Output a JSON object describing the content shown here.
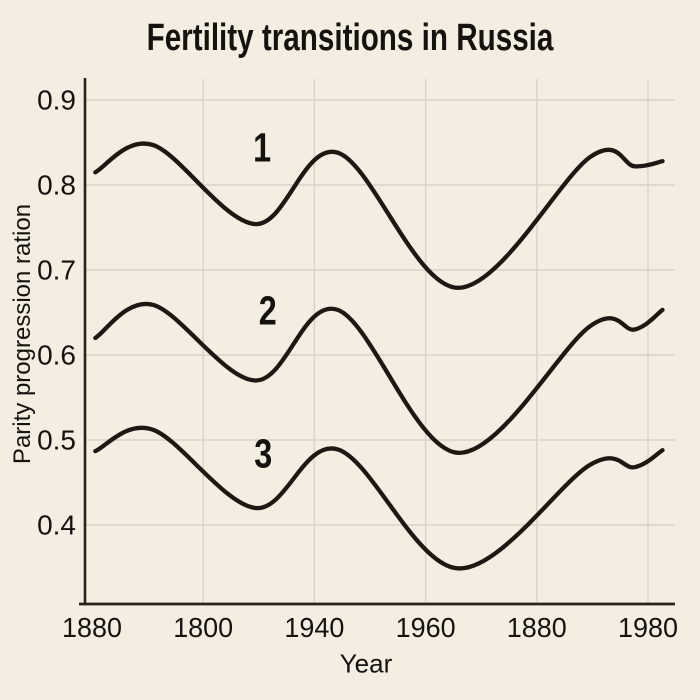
{
  "page": {
    "background_color": "#f4eee2"
  },
  "chart_data": {
    "type": "line",
    "title": "Fertility transitions in Russia",
    "xlabel": "Year",
    "ylabel": "Parity progression ration",
    "x_tick_labels": [
      "1880",
      "1800",
      "1940",
      "1960",
      "1880",
      "1980"
    ],
    "y_tick_labels": [
      "0.9",
      "0.8",
      "0.7",
      "0.6",
      "0.5",
      "0.4"
    ],
    "y_ticks": [
      0.9,
      0.8,
      0.7,
      0.6,
      0.5,
      0.4
    ],
    "ylim": [
      0.31,
      0.92
    ],
    "grid": true,
    "legend_position": "inline-curve-labels",
    "x": [
      0.03,
      0.55,
      1.47,
      2.21,
      3.29,
      4.48,
      4.88,
      5.13
    ],
    "series": [
      {
        "name": "1",
        "values": [
          0.815,
          0.847,
          0.754,
          0.838,
          0.679,
          0.833,
          0.822,
          0.828
        ],
        "label_pos": {
          "x": 1.53,
          "y": 0.845
        }
      },
      {
        "name": "2",
        "values": [
          0.62,
          0.659,
          0.57,
          0.653,
          0.485,
          0.634,
          0.63,
          0.653
        ],
        "label_pos": {
          "x": 1.58,
          "y": 0.653
        }
      },
      {
        "name": "3",
        "values": [
          0.487,
          0.512,
          0.42,
          0.489,
          0.349,
          0.471,
          0.468,
          0.488
        ],
        "label_pos": {
          "x": 1.54,
          "y": 0.485
        }
      }
    ],
    "colors": {
      "line": "#1d1812",
      "grid": "#d9d3c7",
      "axis": "#27221b",
      "text": "#16120d",
      "background": "#f4eee2"
    }
  }
}
